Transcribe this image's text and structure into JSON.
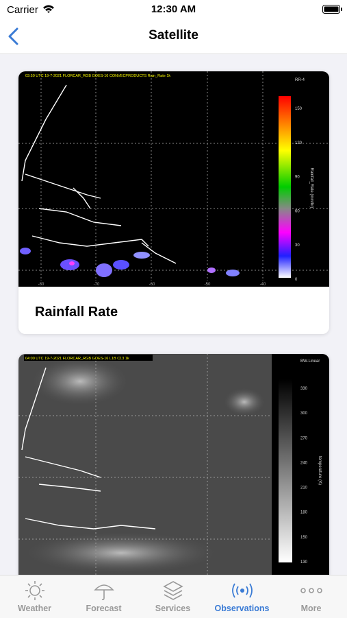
{
  "status_bar": {
    "carrier": "Carrier",
    "time": "12:30 AM"
  },
  "nav": {
    "title": "Satellite"
  },
  "cards": [
    {
      "title": "Rainfall Rate",
      "image": {
        "caption": "03:50 UTC 19-7-2021 FLORCAR_RGB GOES-16 CONVECPRODUCTS Rain_Rate 1k",
        "scale_name": "RR-4",
        "scale_title": "Rainfall_Rate (mm/hr)",
        "scale_ticks": [
          "150",
          "120",
          "90",
          "60",
          "30",
          "0"
        ],
        "lon_labels": [
          "-80",
          "-70",
          "-60",
          "-50",
          "-40"
        ]
      }
    },
    {
      "image": {
        "caption": "04:00 UTC 19-7-2021 FLORCAR_RGB GOES-16 L1B C13 1k",
        "scale_name": "BW-Linear",
        "scale_title": "temperature (K)",
        "scale_ticks": [
          "330",
          "300",
          "270",
          "240",
          "210",
          "180",
          "150",
          "130"
        ]
      }
    }
  ],
  "tabs": [
    "Weather",
    "Forecast",
    "Services",
    "Observations",
    "More"
  ]
}
